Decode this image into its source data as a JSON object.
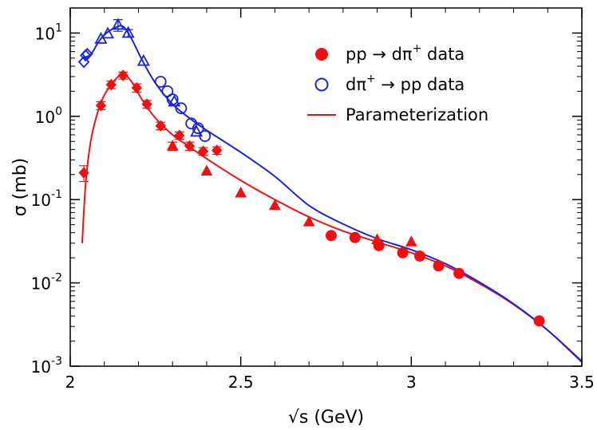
{
  "chart_data": {
    "type": "scatter",
    "scale_y": "log",
    "xlabel": "√s (GeV)",
    "ylabel": "σ (mb)",
    "xlim": [
      2.0,
      3.5
    ],
    "ylim": [
      0.001,
      20
    ],
    "x_ticks": [
      {
        "value": 2.0,
        "label": "2"
      },
      {
        "value": 2.5,
        "label": "2.5"
      },
      {
        "value": 3.0,
        "label": "3"
      },
      {
        "value": 3.5,
        "label": "3.5"
      }
    ],
    "y_ticks": [
      {
        "value": 0.001,
        "base": "10",
        "exp": "-3"
      },
      {
        "value": 0.01,
        "base": "10",
        "exp": "-2"
      },
      {
        "value": 0.1,
        "base": "10",
        "exp": "-1"
      },
      {
        "value": 1,
        "base": "10",
        "exp": "0"
      },
      {
        "value": 10,
        "base": "10",
        "exp": "1"
      }
    ],
    "legend": {
      "placement": "top-right",
      "entries": [
        {
          "key": "pp_data",
          "text": "pp → dπ",
          "sup": "+",
          "tail": " data",
          "marker": "filled-circle",
          "color": "#ee1111"
        },
        {
          "key": "dpi_data",
          "text": "dπ",
          "sup": "+",
          "tail": " → pp data",
          "marker": "open-circle",
          "color": "#1a22dd"
        },
        {
          "key": "param",
          "text": "Parameterization",
          "sup": "",
          "tail": "",
          "marker": "line",
          "color": "#ee1111"
        }
      ]
    },
    "series": [
      {
        "name": "pp → dπ+ data",
        "color": "#ee1111",
        "points": [
          {
            "x": 2.04,
            "y": 0.21,
            "err": 0.045,
            "marker": "diamond"
          },
          {
            "x": 2.09,
            "y": 1.35,
            "err": 0.15,
            "marker": "diamond"
          },
          {
            "x": 2.12,
            "y": 2.4,
            "err": 0.25,
            "marker": "diamond"
          },
          {
            "x": 2.155,
            "y": 3.1,
            "err": 0.3,
            "marker": "diamond"
          },
          {
            "x": 2.195,
            "y": 2.2,
            "err": 0.25,
            "marker": "diamond"
          },
          {
            "x": 2.225,
            "y": 1.4,
            "err": 0.15,
            "marker": "diamond"
          },
          {
            "x": 2.265,
            "y": 0.77,
            "err": 0.08,
            "marker": "diamond"
          },
          {
            "x": 2.3,
            "y": 0.44,
            "err": 0.05,
            "marker": "triangle"
          },
          {
            "x": 2.32,
            "y": 0.59,
            "err": 0.06,
            "marker": "diamond"
          },
          {
            "x": 2.35,
            "y": 0.44,
            "err": 0.05,
            "marker": "diamond"
          },
          {
            "x": 2.39,
            "y": 0.38,
            "err": 0.04,
            "marker": "diamond"
          },
          {
            "x": 2.43,
            "y": 0.39,
            "err": 0.04,
            "marker": "diamond"
          },
          {
            "x": 2.4,
            "y": 0.22,
            "err": 0,
            "marker": "triangle"
          },
          {
            "x": 2.5,
            "y": 0.12,
            "err": 0,
            "marker": "triangle"
          },
          {
            "x": 2.6,
            "y": 0.085,
            "err": 0,
            "marker": "triangle"
          },
          {
            "x": 2.7,
            "y": 0.054,
            "err": 0,
            "marker": "triangle"
          },
          {
            "x": 2.9,
            "y": 0.033,
            "err": 0,
            "marker": "triangle"
          },
          {
            "x": 3.0,
            "y": 0.031,
            "err": 0,
            "marker": "triangle"
          },
          {
            "x": 2.765,
            "y": 0.037,
            "err": 0,
            "marker": "circle"
          },
          {
            "x": 2.835,
            "y": 0.035,
            "err": 0,
            "marker": "circle"
          },
          {
            "x": 2.905,
            "y": 0.028,
            "err": 0,
            "marker": "circle"
          },
          {
            "x": 2.975,
            "y": 0.023,
            "err": 0,
            "marker": "circle"
          },
          {
            "x": 3.025,
            "y": 0.021,
            "err": 0,
            "marker": "circle"
          },
          {
            "x": 3.08,
            "y": 0.016,
            "err": 0,
            "marker": "circle"
          },
          {
            "x": 3.14,
            "y": 0.013,
            "err": 0,
            "marker": "circle"
          },
          {
            "x": 3.375,
            "y": 0.0035,
            "err": 0,
            "marker": "circle"
          }
        ]
      },
      {
        "name": "dπ+ → pp data",
        "color": "#1a22dd",
        "points": [
          {
            "x": 2.04,
            "y": 4.5,
            "err": 0,
            "marker": "open-diamond"
          },
          {
            "x": 2.045,
            "y": 5.4,
            "err": 0,
            "marker": "open-diamond"
          },
          {
            "x": 2.05,
            "y": 5.6,
            "err": 0,
            "marker": "open-diamond"
          },
          {
            "x": 2.09,
            "y": 8.5,
            "err": 0,
            "marker": "open-triangle"
          },
          {
            "x": 2.11,
            "y": 9.8,
            "err": 0,
            "marker": "open-triangle"
          },
          {
            "x": 2.14,
            "y": 12.5,
            "err": 2.0,
            "marker": "open-triangle"
          },
          {
            "x": 2.17,
            "y": 10.0,
            "err": 1.0,
            "marker": "open-triangle"
          },
          {
            "x": 2.215,
            "y": 4.6,
            "err": 0,
            "marker": "open-triangle"
          },
          {
            "x": 2.265,
            "y": 2.6,
            "err": 0,
            "marker": "open-circle"
          },
          {
            "x": 2.285,
            "y": 2.0,
            "err": 0,
            "marker": "open-circle"
          },
          {
            "x": 2.3,
            "y": 1.6,
            "err": 0,
            "marker": "open-circle"
          },
          {
            "x": 2.305,
            "y": 1.5,
            "err": 0,
            "marker": "open-triangle"
          },
          {
            "x": 2.325,
            "y": 1.25,
            "err": 0,
            "marker": "open-circle"
          },
          {
            "x": 2.355,
            "y": 0.82,
            "err": 0,
            "marker": "open-circle"
          },
          {
            "x": 2.375,
            "y": 0.72,
            "err": 0,
            "marker": "open-circle"
          },
          {
            "x": 2.37,
            "y": 0.65,
            "err": 0,
            "marker": "open-triangle"
          },
          {
            "x": 2.395,
            "y": 0.58,
            "err": 0,
            "marker": "open-circle"
          }
        ]
      },
      {
        "name": "Parameterization (pp → dπ+)",
        "color": "#ee1111",
        "line": true,
        "points": [
          {
            "x": 2.035,
            "y": 0.03
          },
          {
            "x": 2.045,
            "y": 0.15
          },
          {
            "x": 2.06,
            "y": 0.5
          },
          {
            "x": 2.08,
            "y": 1.1
          },
          {
            "x": 2.1,
            "y": 1.8
          },
          {
            "x": 2.13,
            "y": 2.7
          },
          {
            "x": 2.155,
            "y": 3.2
          },
          {
            "x": 2.18,
            "y": 2.6
          },
          {
            "x": 2.21,
            "y": 1.6
          },
          {
            "x": 2.25,
            "y": 0.95
          },
          {
            "x": 2.3,
            "y": 0.6
          },
          {
            "x": 2.35,
            "y": 0.43
          },
          {
            "x": 2.4,
            "y": 0.31
          },
          {
            "x": 2.5,
            "y": 0.17
          },
          {
            "x": 2.6,
            "y": 0.1
          },
          {
            "x": 2.7,
            "y": 0.062
          },
          {
            "x": 2.8,
            "y": 0.042
          },
          {
            "x": 2.9,
            "y": 0.031
          },
          {
            "x": 3.0,
            "y": 0.023
          },
          {
            "x": 3.1,
            "y": 0.016
          },
          {
            "x": 3.2,
            "y": 0.0098
          },
          {
            "x": 3.3,
            "y": 0.0055
          },
          {
            "x": 3.4,
            "y": 0.0027
          },
          {
            "x": 3.5,
            "y": 0.00115
          }
        ]
      },
      {
        "name": "Parameterization (dπ+ → pp)",
        "color": "#1a22dd",
        "line": true,
        "points": [
          {
            "x": 2.035,
            "y": 5.0
          },
          {
            "x": 2.06,
            "y": 5.5
          },
          {
            "x": 2.08,
            "y": 7.5
          },
          {
            "x": 2.1,
            "y": 9.5
          },
          {
            "x": 2.13,
            "y": 11.5
          },
          {
            "x": 2.155,
            "y": 12.0
          },
          {
            "x": 2.18,
            "y": 8.5
          },
          {
            "x": 2.21,
            "y": 4.8
          },
          {
            "x": 2.25,
            "y": 2.5
          },
          {
            "x": 2.3,
            "y": 1.4
          },
          {
            "x": 2.35,
            "y": 0.95
          },
          {
            "x": 2.4,
            "y": 0.68
          },
          {
            "x": 2.5,
            "y": 0.37
          },
          {
            "x": 2.6,
            "y": 0.19
          },
          {
            "x": 2.7,
            "y": 0.085
          },
          {
            "x": 2.8,
            "y": 0.051
          },
          {
            "x": 2.9,
            "y": 0.034
          },
          {
            "x": 3.0,
            "y": 0.025
          },
          {
            "x": 3.1,
            "y": 0.017
          },
          {
            "x": 3.2,
            "y": 0.0102
          },
          {
            "x": 3.3,
            "y": 0.0056
          },
          {
            "x": 3.4,
            "y": 0.0027
          },
          {
            "x": 3.5,
            "y": 0.00112
          }
        ]
      }
    ]
  }
}
